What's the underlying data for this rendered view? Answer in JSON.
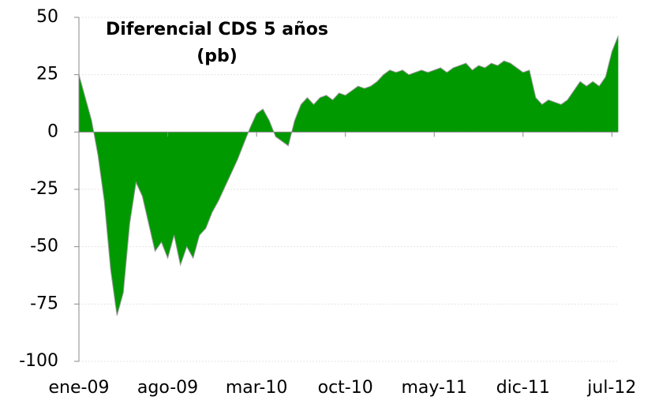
{
  "chart_data": {
    "type": "area",
    "title": [
      "Diferencial CDS 5 años",
      "(pb)"
    ],
    "categories": [
      "ene-09",
      null,
      null,
      null,
      null,
      null,
      null,
      null,
      null,
      null,
      null,
      null,
      null,
      null,
      "ago-09",
      null,
      null,
      null,
      null,
      null,
      null,
      null,
      null,
      null,
      null,
      null,
      null,
      null,
      "mar-10",
      null,
      null,
      null,
      null,
      null,
      null,
      null,
      null,
      null,
      null,
      null,
      null,
      null,
      "oct-10",
      null,
      null,
      null,
      null,
      null,
      null,
      null,
      null,
      null,
      null,
      null,
      null,
      null,
      "may-11",
      null,
      null,
      null,
      null,
      null,
      null,
      null,
      null,
      null,
      null,
      null,
      null,
      null,
      "dic-11",
      null,
      null,
      null,
      null,
      null,
      null,
      null,
      null,
      null,
      null,
      null,
      null,
      null,
      "jul-12",
      null
    ],
    "values": [
      25,
      15,
      5,
      -10,
      -30,
      -60,
      -80,
      -70,
      -40,
      -22,
      -28,
      -40,
      -52,
      -48,
      -55,
      -45,
      -58,
      -50,
      -55,
      -45,
      -42,
      -35,
      -30,
      -24,
      -18,
      -12,
      -5,
      2,
      8,
      10,
      5,
      -2,
      -4,
      -6,
      5,
      12,
      15,
      12,
      15,
      16,
      14,
      17,
      16,
      18,
      20,
      19,
      20,
      22,
      25,
      27,
      26,
      27,
      25,
      26,
      27,
      26,
      27,
      28,
      26,
      28,
      29,
      30,
      27,
      29,
      28,
      30,
      29,
      31,
      30,
      28,
      26,
      27,
      15,
      12,
      14,
      13,
      12,
      14,
      18,
      22,
      20,
      22,
      20,
      24,
      35,
      42
    ],
    "color": "#009900",
    "ylim": [
      -100,
      50
    ],
    "yticks": [
      50,
      25,
      0,
      -25,
      -50,
      -75,
      -100
    ],
    "grid": true
  }
}
